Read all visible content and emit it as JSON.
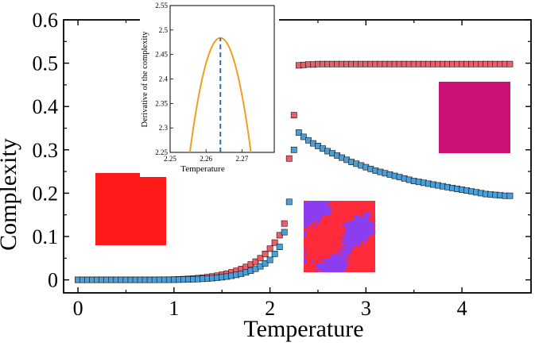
{
  "chart_data": [
    {
      "type": "scatter",
      "xlabel": "Temperature",
      "ylabel": "Complexity",
      "xlim": [
        -0.15,
        4.72
      ],
      "ylim": [
        -0.03,
        0.6
      ],
      "x_ticks": [
        "0",
        "1",
        "2",
        "3",
        "4"
      ],
      "y_ticks": [
        "0",
        "0.1",
        "0.2",
        "0.3",
        "0.4",
        "0.5",
        "0.6"
      ],
      "marker": "square",
      "series": [
        {
          "color": "#e8606a",
          "x": [
            0.0,
            0.05,
            0.1,
            0.15,
            0.2,
            0.25,
            0.3,
            0.35,
            0.4,
            0.45,
            0.5,
            0.55,
            0.6,
            0.65,
            0.7,
            0.75,
            0.8,
            0.85,
            0.9,
            0.95,
            1.0,
            1.05,
            1.1,
            1.15,
            1.2,
            1.25,
            1.3,
            1.35,
            1.4,
            1.45,
            1.5,
            1.55,
            1.6,
            1.65,
            1.7,
            1.75,
            1.8,
            1.85,
            1.9,
            1.95,
            2.0,
            2.05,
            2.1,
            2.15,
            2.2,
            2.25,
            2.3,
            2.35,
            2.4,
            2.45,
            2.5,
            2.55,
            2.6,
            2.65,
            2.7,
            2.75,
            2.8,
            2.85,
            2.9,
            2.95,
            3.0,
            3.05,
            3.1,
            3.15,
            3.2,
            3.25,
            3.3,
            3.35,
            3.4,
            3.45,
            3.5,
            3.55,
            3.6,
            3.65,
            3.7,
            3.75,
            3.8,
            3.85,
            3.9,
            3.95,
            4.0,
            4.05,
            4.1,
            4.15,
            4.2,
            4.25,
            4.3,
            4.35,
            4.4,
            4.45,
            4.5
          ],
          "y": [
            0,
            0,
            0,
            0,
            0,
            0,
            0,
            0,
            0,
            0,
            0,
            0,
            0,
            0,
            0,
            0,
            0.0001,
            0.0002,
            0.0003,
            0.0005,
            0.0008,
            0.0012,
            0.0017,
            0.0023,
            0.003,
            0.0039,
            0.005,
            0.0063,
            0.0078,
            0.0096,
            0.0118,
            0.0144,
            0.0174,
            0.0209,
            0.025,
            0.0298,
            0.0355,
            0.042,
            0.05,
            0.06,
            0.072,
            0.086,
            0.103,
            0.13,
            0.28,
            0.38,
            0.495,
            0.496,
            0.497,
            0.497,
            0.498,
            0.498,
            0.498,
            0.498,
            0.498,
            0.498,
            0.498,
            0.498,
            0.498,
            0.498,
            0.498,
            0.498,
            0.498,
            0.498,
            0.498,
            0.498,
            0.498,
            0.498,
            0.498,
            0.498,
            0.498,
            0.498,
            0.498,
            0.498,
            0.498,
            0.498,
            0.498,
            0.498,
            0.498,
            0.498,
            0.498,
            0.498,
            0.498,
            0.498,
            0.498,
            0.498,
            0.498,
            0.498,
            0.498,
            0.498,
            0.498
          ]
        },
        {
          "color": "#4a9fd8",
          "x": [
            0.0,
            0.05,
            0.1,
            0.15,
            0.2,
            0.25,
            0.3,
            0.35,
            0.4,
            0.45,
            0.5,
            0.55,
            0.6,
            0.65,
            0.7,
            0.75,
            0.8,
            0.85,
            0.9,
            0.95,
            1.0,
            1.05,
            1.1,
            1.15,
            1.2,
            1.25,
            1.3,
            1.35,
            1.4,
            1.45,
            1.5,
            1.55,
            1.6,
            1.65,
            1.7,
            1.75,
            1.8,
            1.85,
            1.9,
            1.95,
            2.0,
            2.05,
            2.1,
            2.15,
            2.2,
            2.25,
            2.3,
            2.35,
            2.4,
            2.45,
            2.5,
            2.55,
            2.6,
            2.65,
            2.7,
            2.75,
            2.8,
            2.85,
            2.9,
            2.95,
            3.0,
            3.05,
            3.1,
            3.15,
            3.2,
            3.25,
            3.3,
            3.35,
            3.4,
            3.45,
            3.5,
            3.55,
            3.6,
            3.65,
            3.7,
            3.75,
            3.8,
            3.85,
            3.9,
            3.95,
            4.0,
            4.05,
            4.1,
            4.15,
            4.2,
            4.25,
            4.3,
            4.35,
            4.4,
            4.45,
            4.5
          ],
          "y": [
            0,
            0,
            0,
            0,
            0,
            0,
            0,
            0,
            0,
            0,
            0,
            0,
            0,
            0,
            0,
            0,
            0,
            0.0001,
            0.0001,
            0.0002,
            0.0003,
            0.0005,
            0.0007,
            0.001,
            0.0014,
            0.0018,
            0.0024,
            0.0031,
            0.0039,
            0.0049,
            0.0061,
            0.0076,
            0.0094,
            0.0115,
            0.0141,
            0.0172,
            0.021,
            0.0256,
            0.0312,
            0.038,
            0.046,
            0.06,
            0.076,
            0.11,
            0.18,
            0.3,
            0.34,
            0.33,
            0.322,
            0.315,
            0.309,
            0.303,
            0.297,
            0.292,
            0.287,
            0.282,
            0.277,
            0.272,
            0.268,
            0.264,
            0.26,
            0.256,
            0.252,
            0.249,
            0.246,
            0.243,
            0.24,
            0.237,
            0.234,
            0.231,
            0.228,
            0.226,
            0.224,
            0.222,
            0.22,
            0.218,
            0.216,
            0.214,
            0.212,
            0.21,
            0.208,
            0.206,
            0.204,
            0.202,
            0.2,
            0.198,
            0.197,
            0.196,
            0.195,
            0.194,
            0.194
          ]
        }
      ]
    },
    {
      "type": "line",
      "xlabel": "Temperature",
      "ylabel": "Derivative of the complexity",
      "xlim": [
        2.25,
        2.279
      ],
      "ylim": [
        2.25,
        2.55
      ],
      "x_ticks": [
        "2.25",
        "2.26",
        "2.27"
      ],
      "y_ticks": [
        "2.25",
        "2.3",
        "2.35",
        "2.4",
        "2.45",
        "2.5",
        "2.55"
      ],
      "series": [
        {
          "color": "#f0a020",
          "x": [
            2.2555,
            2.257,
            2.259,
            2.261,
            2.2625,
            2.264,
            2.2655,
            2.267,
            2.269,
            2.271,
            2.2725
          ],
          "y": [
            2.25,
            2.32,
            2.402,
            2.455,
            2.476,
            2.484,
            2.476,
            2.455,
            2.402,
            2.32,
            2.25
          ]
        }
      ],
      "peak_marker": {
        "x": 2.264,
        "y_from": 2.25,
        "y_to": 2.484,
        "color": "#2c6fa8"
      }
    }
  ],
  "insets": {
    "colors": {
      "solid_red": "#ff1a1a",
      "magenta": "#cc1177",
      "mixed_red": "#ff2a3a",
      "mixed_purple": "#8a3ef0"
    }
  }
}
